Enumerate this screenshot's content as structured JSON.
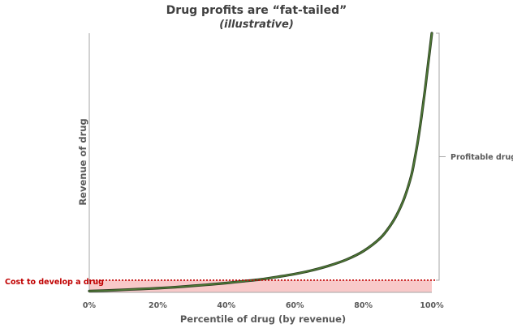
{
  "chart_data": {
    "type": "area",
    "title": "Drug profits are “fat-tailed”",
    "subtitle": "(illustrative)",
    "xlabel": "Percentile of drug (by revenue)",
    "ylabel": "Revenue of drug",
    "xlim": [
      0,
      100
    ],
    "ylim": [
      0,
      100
    ],
    "x_ticks": [
      "0%",
      "20%",
      "40%",
      "60%",
      "80%",
      "100%"
    ],
    "grid": false,
    "series": [
      {
        "x": [
          0,
          5,
          10,
          15,
          20,
          25,
          30,
          35,
          40,
          45,
          50,
          55,
          60,
          65,
          70,
          75,
          80,
          85,
          88,
          90,
          92,
          94,
          95,
          96,
          97,
          98,
          99,
          100
        ],
        "y": [
          0.5,
          0.7,
          1.0,
          1.3,
          1.6,
          2.0,
          2.5,
          3.0,
          3.6,
          4.3,
          5.0,
          6.0,
          7.1,
          8.5,
          10.3,
          12.6,
          15.9,
          21.0,
          26.0,
          30.5,
          36.5,
          45.0,
          51.5,
          59.0,
          68.0,
          78.0,
          89.0,
          100.0
        ],
        "color": "#3a5a2e"
      }
    ],
    "cost_line": {
      "label": "Cost to develop a drug",
      "y": 4.7,
      "color": "#c00000",
      "fill_color": "#f8c9c9"
    },
    "bracket": {
      "label": "Profitable drugs",
      "from_y": 4.7,
      "to_y": 100
    }
  }
}
